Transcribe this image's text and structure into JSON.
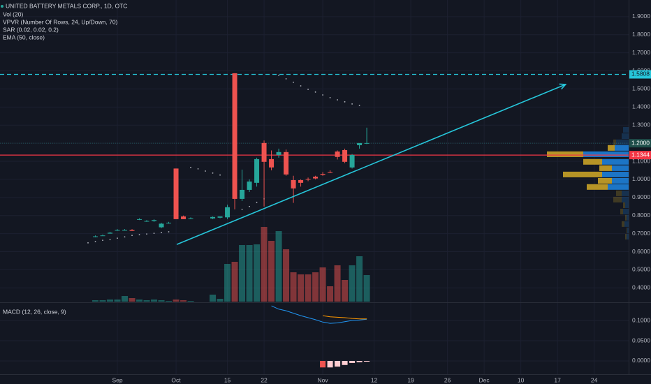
{
  "chart_data": [
    {
      "type": "candlestick",
      "title": "UNITED BATTERY METALS CORP., 1D, OTC",
      "indicators": [
        "Vol (20)",
        "VPVR (Number Of Rows, 24, Up/Down, 70)",
        "SAR (0.02, 0.02, 0.2)",
        "EMA (50, close)"
      ],
      "up_color": "#26a69a",
      "down_color": "#ef5350",
      "xlim": [
        0,
        85.7
      ],
      "xticks": [
        {
          "value": 16,
          "label": "Sep"
        },
        {
          "value": 24,
          "label": "Oct"
        },
        {
          "value": 31,
          "label": "15"
        },
        {
          "value": 36,
          "label": "22"
        },
        {
          "value": 44,
          "label": "Nov"
        },
        {
          "value": 51,
          "label": "12"
        },
        {
          "value": 56,
          "label": "19"
        },
        {
          "value": 61,
          "label": "26"
        },
        {
          "value": 66,
          "label": "Dec"
        },
        {
          "value": 71,
          "label": "10"
        },
        {
          "value": 76,
          "label": "17"
        },
        {
          "value": 81,
          "label": "24"
        }
      ],
      "ylim": [
        0.324,
        1.992
      ],
      "yticks": [
        {
          "value": 1.9,
          "label": "1.9000"
        },
        {
          "value": 1.8,
          "label": "1.8000"
        },
        {
          "value": 1.7,
          "label": "1.7000"
        },
        {
          "value": 1.6,
          "label": "1.6000"
        },
        {
          "value": 1.5,
          "label": "1.5000"
        },
        {
          "value": 1.4,
          "label": "1.4000"
        },
        {
          "value": 1.3,
          "label": "1.3000"
        },
        {
          "value": 1.2,
          "label": "1.2000"
        },
        {
          "value": 1.1,
          "label": "1.1000"
        },
        {
          "value": 1.0,
          "label": "1.0000"
        },
        {
          "value": 0.9,
          "label": "0.9000"
        },
        {
          "value": 0.8,
          "label": "0.8000"
        },
        {
          "value": 0.7,
          "label": "0.7000"
        },
        {
          "value": 0.6,
          "label": "0.6000"
        },
        {
          "value": 0.5,
          "label": "0.5000"
        },
        {
          "value": 0.4,
          "label": "0.4000"
        }
      ],
      "grid": true,
      "x": [
        13,
        14,
        15,
        16,
        17,
        18,
        19,
        20,
        21,
        22,
        23,
        24,
        25,
        26,
        29,
        30,
        31,
        32,
        33,
        34,
        35,
        36,
        37,
        38,
        39,
        40,
        41,
        42,
        43,
        44,
        45,
        46,
        47,
        48,
        49,
        50
      ],
      "open": [
        0.685,
        0.69,
        0.7,
        0.72,
        0.72,
        0.72,
        0.78,
        0.77,
        0.77,
        0.735,
        0.76,
        1.06,
        0.795,
        0.785,
        0.784,
        0.788,
        0.79,
        1.587,
        0.892,
        0.942,
        0.981,
        1.201,
        1.112,
        1.135,
        1.151,
        0.996,
        0.996,
        1.002,
        1.015,
        1.03,
        1.04,
        1.154,
        1.162,
        1.066,
        1.189,
        1.2
      ],
      "high": [
        0.69,
        0.695,
        0.71,
        0.725,
        0.725,
        0.725,
        0.785,
        0.775,
        0.78,
        0.76,
        0.765,
        1.06,
        0.8,
        0.79,
        0.795,
        0.795,
        0.86,
        1.587,
        1.054,
        1.0,
        1.12,
        1.215,
        1.16,
        1.17,
        1.165,
        1.02,
        1.0,
        1.01,
        1.02,
        1.04,
        1.05,
        1.16,
        1.17,
        1.14,
        1.2,
        1.286
      ],
      "low": [
        0.68,
        0.69,
        0.7,
        0.715,
        0.72,
        0.715,
        0.775,
        0.765,
        0.765,
        0.73,
        0.755,
        0.78,
        0.78,
        0.78,
        0.78,
        0.785,
        0.78,
        0.834,
        0.88,
        0.93,
        0.96,
        0.85,
        1.05,
        1.12,
        1.02,
        0.87,
        0.96,
        0.99,
        1.0,
        1.02,
        1.035,
        1.11,
        1.09,
        1.06,
        1.17,
        1.195
      ],
      "close": [
        0.685,
        0.69,
        0.705,
        0.72,
        0.72,
        0.715,
        0.78,
        0.77,
        0.775,
        0.755,
        0.76,
        0.78,
        0.78,
        0.785,
        0.792,
        0.795,
        0.846,
        0.892,
        0.942,
        0.988,
        1.112,
        1.097,
        1.066,
        1.151,
        1.027,
        0.95,
        0.981,
        1.0,
        1.005,
        1.025,
        1.038,
        1.124,
        1.097,
        1.135,
        1.201,
        1.201
      ],
      "volume": [
        2,
        2,
        3,
        3,
        8,
        5,
        3,
        2,
        3,
        2,
        1,
        3,
        2,
        1,
        10,
        4,
        54,
        57,
        81,
        81,
        82,
        107,
        87,
        101,
        75,
        42,
        39,
        39,
        42,
        49,
        22,
        52,
        31,
        52,
        65,
        38
      ],
      "volume_lim": [
        0,
        432
      ],
      "sar": {
        "color": "#b2b5be",
        "x": [
          12,
          13,
          14,
          15,
          16,
          17,
          18,
          19,
          20,
          21,
          22,
          23,
          26,
          27,
          28,
          29,
          30,
          33,
          34,
          35,
          36,
          38,
          39,
          40,
          41,
          42,
          43,
          44,
          45,
          46,
          47,
          48,
          49
        ],
        "values": [
          0.649,
          0.656,
          0.663,
          0.667,
          0.675,
          0.682,
          0.69,
          0.694,
          0.698,
          0.702,
          0.706,
          0.71,
          1.066,
          1.058,
          1.046,
          1.035,
          1.024,
          0.834,
          0.85,
          0.873,
          0.892,
          1.575,
          1.556,
          1.537,
          1.517,
          1.498,
          1.483,
          1.467,
          1.452,
          1.44,
          1.429,
          1.417,
          1.409
        ]
      },
      "price_lines": [
        {
          "value": 1.5808,
          "label": "1.5808",
          "color": "#26c6da",
          "style": "dashed",
          "text_color": "#131722"
        },
        {
          "value": 1.1344,
          "label": "1.1344",
          "color": "#f23645",
          "style": "solid",
          "text_color": "#ffffff"
        }
      ],
      "last_price": {
        "value": 1.2,
        "label": "1.2000",
        "color": "#1f4e4a",
        "text_color": "#ffffff"
      },
      "trendline": {
        "color": "#26c6da",
        "x": [
          24.1,
          77.1
        ],
        "values": [
          0.64,
          1.525
        ]
      },
      "vpvr": {
        "up_color": "#1e7fd8",
        "down_color": "#c9a227",
        "value_area": [
          0.94,
          1.19
        ],
        "price": [
          1.274,
          1.239,
          1.205,
          1.174,
          1.139,
          1.097,
          1.062,
          1.027,
          0.992,
          0.958,
          0.923,
          0.888,
          0.857,
          0.822,
          0.788,
          0.753,
          0.718,
          0.683
        ],
        "up": [
          8,
          10,
          18,
          20,
          65,
          38,
          24,
          38,
          24,
          30,
          10,
          10,
          5,
          8,
          3,
          6,
          2,
          3
        ],
        "down": [
          0,
          0,
          4,
          10,
          52,
          27,
          18,
          56,
          20,
          30,
          8,
          12,
          3,
          4,
          2,
          4,
          1,
          2
        ]
      }
    },
    {
      "type": "macd",
      "title": "MACD (12, 26, close, 9)",
      "ylim": [
        -0.0328,
        0.1397
      ],
      "yticks": [
        {
          "value": 0.1,
          "label": "0.1000"
        },
        {
          "value": 0.05,
          "label": "0.0500"
        },
        {
          "value": 0,
          "label": "0.0000"
        }
      ],
      "series": [
        {
          "color": "#2196f3",
          "x": [
            37,
            38,
            39,
            40,
            41,
            42,
            43,
            44,
            45,
            46,
            47,
            48,
            49,
            50
          ],
          "values": [
            0.136,
            0.128,
            0.124,
            0.118,
            0.112,
            0.107,
            0.102,
            0.096,
            0.093,
            0.094,
            0.097,
            0.1,
            0.101,
            0.103
          ]
        },
        {
          "color": "#ff9800",
          "x": [
            44,
            45,
            46,
            47,
            48,
            49,
            50
          ],
          "values": [
            0.112,
            0.109,
            0.108,
            0.107,
            0.105,
            0.104,
            0.104
          ]
        }
      ],
      "histogram": {
        "color": "#ef5350",
        "fading_color": "#ffcdd2",
        "x": [
          44,
          45,
          46,
          47,
          48,
          49,
          50
        ],
        "values": [
          -0.016,
          -0.016,
          -0.014,
          -0.01,
          -0.005,
          -0.003,
          -0.001
        ]
      }
    }
  ]
}
